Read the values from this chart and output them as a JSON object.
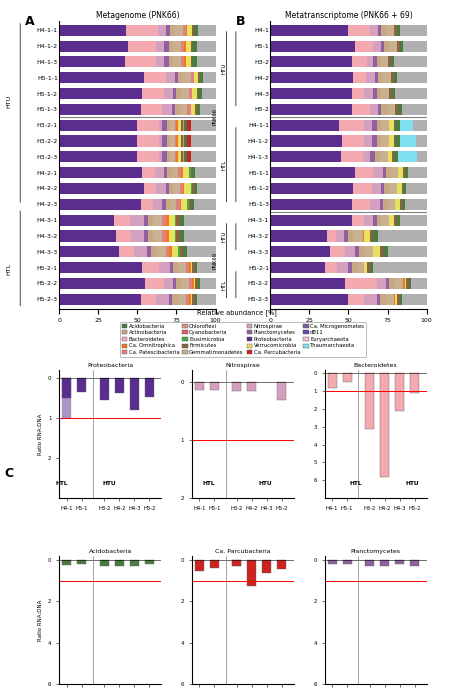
{
  "title_A": "Metagenome (PNK66)",
  "title_B": "Metatranscriptome (PNK66 + 69)",
  "xlabel": "Relative abundance [%]",
  "label_A": "A",
  "label_B": "B",
  "label_C": "C",
  "taxa_colors": {
    "Acidobacteria": "#4a7c3f",
    "Actinobacteria": "#c8a882",
    "Bacteroidetes": "#f4a9b0",
    "Ca. Omnitrophica": "#f07820",
    "Ca. Patescibacteria": "#e08080",
    "Chloroflexi": "#d4967a",
    "Cyanobacteria": "#e06060",
    "Elusimicrobia": "#44aa44",
    "Firmicutes": "#8b6340",
    "Gemmatimonadetes": "#c8b090",
    "Nitrospirae": "#d4a0c0",
    "Planctomycetes": "#9060a0",
    "Proteobacteria": "#5b2d8e",
    "Verrucomicrobia": "#e8e060",
    "Ca. Parcubacteria": "#cc2222",
    "Ca. Microgenometes": "#7b5ea0",
    "dB11": "#6644aa",
    "Euryarchaeota": "#f0c0d0",
    "Thaumarchaeota": "#80e0f0"
  },
  "rows_A": [
    "H5-2-3",
    "H5-2-2",
    "H5-2-1",
    "H4-3-3",
    "H4-3-2",
    "H4-3-1",
    "H4-2-3",
    "H4-2-2",
    "H4-2-1",
    "H3-2-3",
    "H3-2-2",
    "H3-2-1",
    "H5-1-3",
    "H5-1-2",
    "H5-1-1",
    "H4-1-3",
    "H4-1-2",
    "H4-1-1"
  ],
  "group_A": {
    "HTU": [
      "H5-2-3",
      "H5-2-2",
      "H5-2-1",
      "H4-3-3",
      "H4-3-2",
      "H4-3-1",
      "H4-2-3",
      "H4-2-2",
      "H4-2-1",
      "H3-2-3",
      "H3-2-2",
      "H3-2-1"
    ],
    "HTL": [
      "H5-1-3",
      "H5-1-2",
      "H5-1-1",
      "H4-1-3",
      "H4-1-2",
      "H4-1-1"
    ]
  },
  "data_A": {
    "H5-2-3": {
      "Proteobacteria": 52,
      "Bacteroidetes": 10,
      "Nitrospirae": 8,
      "Ca. Omnitrophica": 1,
      "Acidobacteria": 1,
      "Planctomycetes": 2,
      "Firmicutes": 2,
      "Actinobacteria": 4,
      "Ca. Patescibacteria": 2,
      "Gemmatimonadetes": 5,
      "Verrucomicrobia": 1,
      "other": 12
    },
    "H5-2-2": {
      "Proteobacteria": 55,
      "Bacteroidetes": 12,
      "Nitrospirae": 6,
      "Ca. Omnitrophica": 1,
      "Acidobacteria": 1,
      "Planctomycetes": 2,
      "Firmicutes": 2,
      "Actinobacteria": 3,
      "Ca. Patescibacteria": 2,
      "Gemmatimonadetes": 5,
      "Verrucomicrobia": 1,
      "other": 10
    },
    "H5-2-1": {
      "Proteobacteria": 53,
      "Bacteroidetes": 11,
      "Nitrospirae": 7,
      "Ca. Omnitrophica": 1,
      "Acidobacteria": 1,
      "Planctomycetes": 2,
      "Firmicutes": 2,
      "Actinobacteria": 3,
      "Ca. Patescibacteria": 2,
      "Gemmatimonadetes": 5,
      "Verrucomicrobia": 1,
      "other": 12
    },
    "H4-3-3": {
      "Proteobacteria": 38,
      "Bacteroidetes": 10,
      "Nitrospirae": 8,
      "Ca. Omnitrophica": 2,
      "Acidobacteria": 3,
      "Planctomycetes": 3,
      "Firmicutes": 2,
      "Actinobacteria": 3,
      "Ca. Patescibacteria": 2,
      "Gemmatimonadetes": 6,
      "Verrucomicrobia": 4,
      "Elusimicrobia": 1,
      "other": 18
    },
    "H4-3-2": {
      "Proteobacteria": 36,
      "Bacteroidetes": 10,
      "Nitrospirae": 8,
      "Ca. Omnitrophica": 2,
      "Acidobacteria": 3,
      "Planctomycetes": 3,
      "Firmicutes": 2,
      "Actinobacteria": 3,
      "Ca. Patescibacteria": 2,
      "Gemmatimonadetes": 6,
      "Verrucomicrobia": 4,
      "Elusimicrobia": 1,
      "other": 20
    },
    "H4-3-1": {
      "Proteobacteria": 35,
      "Bacteroidetes": 10,
      "Nitrospirae": 9,
      "Ca. Omnitrophica": 2,
      "Acidobacteria": 3,
      "Planctomycetes": 3,
      "Firmicutes": 2,
      "Actinobacteria": 3,
      "Ca. Patescibacteria": 2,
      "Gemmatimonadetes": 6,
      "Verrucomicrobia": 4,
      "Elusimicrobia": 1,
      "other": 20
    },
    "H4-2-3": {
      "Proteobacteria": 52,
      "Bacteroidetes": 8,
      "Nitrospirae": 6,
      "Ca. Omnitrophica": 1,
      "Acidobacteria": 2,
      "Planctomycetes": 2,
      "Firmicutes": 1,
      "Actinobacteria": 3,
      "Ca. Patescibacteria": 2,
      "Gemmatimonadetes": 4,
      "Verrucomicrobia": 4,
      "Elusimicrobia": 1,
      "other": 14
    },
    "H4-2-2": {
      "Proteobacteria": 54,
      "Bacteroidetes": 8,
      "Nitrospirae": 6,
      "Ca. Omnitrophica": 1,
      "Acidobacteria": 2,
      "Planctomycetes": 2,
      "Firmicutes": 1,
      "Actinobacteria": 3,
      "Ca. Patescibacteria": 2,
      "Gemmatimonadetes": 4,
      "Verrucomicrobia": 4,
      "Elusimicrobia": 1,
      "other": 12
    },
    "H4-2-1": {
      "Proteobacteria": 53,
      "Bacteroidetes": 8,
      "Nitrospirae": 6,
      "Ca. Omnitrophica": 1,
      "Acidobacteria": 2,
      "Planctomycetes": 2,
      "Firmicutes": 1,
      "Actinobacteria": 3,
      "Ca. Patescibacteria": 2,
      "Gemmatimonadetes": 4,
      "Verrucomicrobia": 4,
      "Elusimicrobia": 1,
      "other": 13
    },
    "H3-2-3": {
      "Proteobacteria": 50,
      "Bacteroidetes": 14,
      "Nitrospirae": 2,
      "Ca. Omnitrophica": 1,
      "Acidobacteria": 2,
      "Planctomycetes": 3,
      "Firmicutes": 1,
      "Actinobacteria": 2,
      "Ca. Patescibacteria": 1,
      "Gemmatimonadetes": 3,
      "Verrucomicrobia": 2,
      "Chloroflexi": 1,
      "Ca. Parcubacteria": 2,
      "other": 16
    },
    "H3-2-2": {
      "Proteobacteria": 50,
      "Bacteroidetes": 14,
      "Nitrospirae": 2,
      "Ca. Omnitrophica": 1,
      "Acidobacteria": 2,
      "Planctomycetes": 3,
      "Firmicutes": 1,
      "Actinobacteria": 2,
      "Ca. Patescibacteria": 1,
      "Gemmatimonadetes": 3,
      "Verrucomicrobia": 2,
      "Chloroflexi": 1,
      "Ca. Parcubacteria": 2,
      "other": 16
    },
    "H3-2-1": {
      "Proteobacteria": 50,
      "Bacteroidetes": 14,
      "Nitrospirae": 2,
      "Ca. Omnitrophica": 1,
      "Acidobacteria": 2,
      "Planctomycetes": 3,
      "Firmicutes": 1,
      "Actinobacteria": 2,
      "Ca. Patescibacteria": 1,
      "Gemmatimonadetes": 3,
      "Verrucomicrobia": 2,
      "Chloroflexi": 1,
      "Ca. Parcubacteria": 2,
      "other": 16
    },
    "H5-1-3": {
      "Proteobacteria": 52,
      "Bacteroidetes": 14,
      "Nitrospirae": 6,
      "Acidobacteria": 2,
      "Planctomycetes": 2,
      "Firmicutes": 1,
      "Actinobacteria": 3,
      "Ca. Patescibacteria": 2,
      "Gemmatimonadetes": 5,
      "Verrucomicrobia": 3,
      "other": 10
    },
    "H5-1-2": {
      "Proteobacteria": 53,
      "Bacteroidetes": 14,
      "Nitrospirae": 6,
      "Acidobacteria": 2,
      "Planctomycetes": 2,
      "Firmicutes": 1,
      "Actinobacteria": 3,
      "Ca. Patescibacteria": 2,
      "Gemmatimonadetes": 5,
      "Verrucomicrobia": 3,
      "other": 9
    },
    "H5-1-1": {
      "Proteobacteria": 54,
      "Bacteroidetes": 14,
      "Nitrospirae": 6,
      "Acidobacteria": 2,
      "Planctomycetes": 2,
      "Firmicutes": 1,
      "Actinobacteria": 3,
      "Ca. Patescibacteria": 2,
      "Gemmatimonadetes": 5,
      "Verrucomicrobia": 3,
      "other": 8
    },
    "H4-1-3": {
      "Proteobacteria": 42,
      "Bacteroidetes": 20,
      "Nitrospirae": 5,
      "Acidobacteria": 3,
      "Planctomycetes": 3,
      "Firmicutes": 1,
      "Actinobacteria": 3,
      "Ca. Patescibacteria": 2,
      "Gemmatimonadetes": 5,
      "Verrucomicrobia": 3,
      "Ca. Omnitrophica": 1,
      "other": 12
    },
    "H4-1-2": {
      "Proteobacteria": 44,
      "Bacteroidetes": 18,
      "Nitrospirae": 5,
      "Acidobacteria": 3,
      "Planctomycetes": 3,
      "Firmicutes": 1,
      "Actinobacteria": 3,
      "Ca. Patescibacteria": 2,
      "Gemmatimonadetes": 5,
      "Verrucomicrobia": 3,
      "Ca. Omnitrophica": 1,
      "other": 12
    },
    "H4-1-1": {
      "Proteobacteria": 43,
      "Bacteroidetes": 20,
      "Nitrospirae": 5,
      "Acidobacteria": 3,
      "Planctomycetes": 3,
      "Firmicutes": 1,
      "Actinobacteria": 3,
      "Ca. Patescibacteria": 2,
      "Gemmatimonadetes": 5,
      "Verrucomicrobia": 3,
      "Ca. Omnitrophica": 1,
      "other": 11
    }
  },
  "rows_B_PNK66": [
    "H5-2-3",
    "H5-2-2",
    "H5-2-1",
    "H4-3-3",
    "H4-3-2",
    "H4-3-1",
    "H5-1-3",
    "H5-1-2",
    "H5-1-1",
    "H4-1-3",
    "H4-1-2",
    "H4-1-1"
  ],
  "rows_B_PNK69": [
    "H5-2",
    "H4-3",
    "H4-2",
    "H3-2",
    "H5-1",
    "H4-1"
  ],
  "data_B_PNK66": {
    "H5-2-3": {
      "Proteobacteria": 50,
      "Bacteroidetes": 10,
      "Nitrospirae": 8,
      "Ca. Omnitrophica": 1,
      "Acidobacteria": 1,
      "Planctomycetes": 2,
      "Firmicutes": 2,
      "Actinobacteria": 4,
      "Gemmatimonadetes": 5,
      "Verrucomicrobia": 1,
      "other": 16
    },
    "H5-2-2": {
      "Proteobacteria": 48,
      "Bacteroidetes": 20,
      "Nitrospirae": 6,
      "Ca. Omnitrophica": 1,
      "Acidobacteria": 1,
      "Planctomycetes": 2,
      "Firmicutes": 2,
      "Actinobacteria": 4,
      "Gemmatimonadetes": 5,
      "Verrucomicrobia": 1,
      "other": 10
    },
    "H5-2-1": {
      "Proteobacteria": 35,
      "Bacteroidetes": 8,
      "Nitrospirae": 7,
      "Acidobacteria": 2,
      "Planctomycetes": 2,
      "Firmicutes": 2,
      "Actinobacteria": 4,
      "Gemmatimonadetes": 4,
      "Verrucomicrobia": 2,
      "other": 34
    },
    "H4-3-3": {
      "Proteobacteria": 38,
      "Bacteroidetes": 10,
      "Nitrospirae": 6,
      "Acidobacteria": 3,
      "Planctomycetes": 3,
      "Firmicutes": 2,
      "Actinobacteria": 3,
      "Gemmatimonadetes": 6,
      "Verrucomicrobia": 4,
      "other": 25
    },
    "H4-3-2": {
      "Proteobacteria": 36,
      "Bacteroidetes": 6,
      "Nitrospirae": 5,
      "Acidobacteria": 3,
      "Planctomycetes": 3,
      "Firmicutes": 2,
      "Actinobacteria": 3,
      "Gemmatimonadetes": 6,
      "Verrucomicrobia": 4,
      "Ca. Omnitrophica": 1,
      "other": 31
    },
    "H4-3-1": {
      "Proteobacteria": 52,
      "Bacteroidetes": 8,
      "Nitrospirae": 6,
      "Acidobacteria": 2,
      "Planctomycetes": 2,
      "Firmicutes": 2,
      "Actinobacteria": 3,
      "Gemmatimonadetes": 5,
      "Verrucomicrobia": 3,
      "other": 17
    },
    "H5-1-3": {
      "Proteobacteria": 52,
      "Bacteroidetes": 12,
      "Nitrospirae": 6,
      "Acidobacteria": 2,
      "Planctomycetes": 2,
      "Firmicutes": 1,
      "Actinobacteria": 3,
      "Gemmatimonadetes": 5,
      "Verrucomicrobia": 3,
      "other": 14
    },
    "H5-1-2": {
      "Proteobacteria": 53,
      "Bacteroidetes": 12,
      "Nitrospirae": 6,
      "Acidobacteria": 2,
      "Planctomycetes": 2,
      "Firmicutes": 1,
      "Actinobacteria": 3,
      "Gemmatimonadetes": 5,
      "Verrucomicrobia": 3,
      "other": 13
    },
    "H5-1-1": {
      "Proteobacteria": 54,
      "Bacteroidetes": 12,
      "Nitrospirae": 6,
      "Acidobacteria": 2,
      "Planctomycetes": 2,
      "Firmicutes": 1,
      "Actinobacteria": 3,
      "Gemmatimonadetes": 5,
      "Verrucomicrobia": 3,
      "other": 12
    },
    "H4-1-3": {
      "Thaumarchaeota": 12,
      "Proteobacteria": 45,
      "Bacteroidetes": 14,
      "Nitrospirae": 5,
      "Acidobacteria": 3,
      "Planctomycetes": 3,
      "Firmicutes": 1,
      "Actinobacteria": 3,
      "Gemmatimonadetes": 5,
      "Verrucomicrobia": 3,
      "other": 6
    },
    "H4-1-2": {
      "Thaumarchaeota": 10,
      "Proteobacteria": 46,
      "Bacteroidetes": 14,
      "Nitrospirae": 5,
      "Acidobacteria": 3,
      "Planctomycetes": 3,
      "Firmicutes": 1,
      "Actinobacteria": 3,
      "Gemmatimonadetes": 5,
      "Verrucomicrobia": 3,
      "other": 7
    },
    "H4-1-1": {
      "Thaumarchaeota": 8,
      "Proteobacteria": 44,
      "Bacteroidetes": 16,
      "Nitrospirae": 5,
      "Acidobacteria": 3,
      "Planctomycetes": 3,
      "Firmicutes": 1,
      "Actinobacteria": 3,
      "Gemmatimonadetes": 5,
      "Verrucomicrobia": 3,
      "other": 9
    }
  },
  "data_B_PNK69": {
    "H5-2": {
      "Proteobacteria": 52,
      "Bacteroidetes": 12,
      "Nitrospirae": 5,
      "Acidobacteria": 2,
      "Planctomycetes": 2,
      "Firmicutes": 2,
      "Actinobacteria": 4,
      "Gemmatimonadetes": 5,
      "other": 16
    },
    "H4-3": {
      "Proteobacteria": 52,
      "Bacteroidetes": 8,
      "Nitrospirae": 6,
      "Acidobacteria": 2,
      "Planctomycetes": 2,
      "Firmicutes": 2,
      "Actinobacteria": 3,
      "Gemmatimonadetes": 5,
      "other": 20
    },
    "H4-2": {
      "Proteobacteria": 53,
      "Bacteroidetes": 8,
      "Nitrospirae": 6,
      "Acidobacteria": 2,
      "Planctomycetes": 2,
      "Firmicutes": 2,
      "Actinobacteria": 3,
      "Gemmatimonadetes": 5,
      "other": 19
    },
    "H3-2": {
      "Proteobacteria": 52,
      "Bacteroidetes": 10,
      "Nitrospirae": 4,
      "Acidobacteria": 2,
      "Planctomycetes": 2,
      "Firmicutes": 2,
      "Actinobacteria": 3,
      "Gemmatimonadetes": 4,
      "other": 21
    },
    "H5-1": {
      "Proteobacteria": 54,
      "Bacteroidetes": 12,
      "Nitrospirae": 5,
      "Acidobacteria": 2,
      "Planctomycetes": 2,
      "Firmicutes": 2,
      "Actinobacteria": 3,
      "Gemmatimonadetes": 5,
      "other": 15
    },
    "H4-1": {
      "Proteobacteria": 50,
      "Bacteroidetes": 14,
      "Nitrospirae": 5,
      "Acidobacteria": 2,
      "Planctomycetes": 2,
      "Firmicutes": 2,
      "Actinobacteria": 3,
      "Gemmatimonadetes": 5,
      "other": 17
    }
  },
  "legend_items": [
    [
      "Acidobacteria",
      "#4a7c3f"
    ],
    [
      "Actinobacteria",
      "#c8a882"
    ],
    [
      "Bacteroidetes",
      "#f4a9b0"
    ],
    [
      "Ca. Omnitrophica",
      "#f07820"
    ],
    [
      "Ca. Patescibacteria",
      "#e08080"
    ],
    [
      "Chloroflexi",
      "#d4967a"
    ],
    [
      "Cyanobacteria",
      "#e06060"
    ],
    [
      "Elusimicrobia",
      "#44aa44"
    ],
    [
      "Firmicutes",
      "#8b6340"
    ],
    [
      "Gemmatimonadetes",
      "#c8b090"
    ],
    [
      "Nitrospirae",
      "#d4a0c0"
    ],
    [
      "Planctomycetes",
      "#9060a0"
    ],
    [
      "Proteobacteria",
      "#5b2d8e"
    ],
    [
      "Verrucomicrobia",
      "#e8e060"
    ],
    [
      "Ca. Parcubacteria",
      "#cc2222"
    ],
    [
      "Ca. Microgenometes",
      "#7b5ea0"
    ],
    [
      "dB11",
      "#6644aa"
    ],
    [
      "Euryarchaeota",
      "#f0c0d0"
    ],
    [
      "Thaumarchaeota",
      "#80e0f0"
    ]
  ],
  "panel_C_groups": [
    "H4-1",
    "H5-1",
    "H3-2",
    "H4-2",
    "H4-3",
    "H5-2"
  ],
  "panel_C_labels": [
    "HTL",
    "HTU"
  ],
  "panel_C_htl": [
    "H4-1",
    "H5-1"
  ],
  "panel_C_htu": [
    "H3-2",
    "H4-2",
    "H4-3",
    "H5-2"
  ],
  "panel_C_data": {
    "Proteobacteria": {
      "H4-1": -0.5,
      "H5-1": -0.3,
      "H3-2": -0.6,
      "H4-2": -0.4,
      "H4-3": -1.0,
      "H5-2": -0.5,
      "H4-1_extra": -1.0,
      "H5-2_extra": -0.3
    },
    "Nitrospirae": {
      "H4-1": -0.2,
      "H5-1": -0.2,
      "H3-2": -0.2,
      "H4-2": -0.2,
      "H4-3": 0,
      "H5-2": -0.5
    },
    "Bacteroidetes": {
      "H4-1": -1.0,
      "H5-1": -0.5,
      "H3-2": -3.2,
      "H4-2": -6.5,
      "H4-3": -2.5,
      "H5-2": -1.5
    },
    "Acidobacteria": {
      "H4-1": -0.3,
      "H5-1": -0.2,
      "H3-2": -0.3,
      "H4-2": -0.3,
      "H4-3": -0.3,
      "H5-2": -0.2
    },
    "Ca. Parcubacteria": {
      "H4-1": -0.8,
      "H5-1": -0.5,
      "H3-2": -0.3,
      "H4-2": -1.5,
      "H4-3": -0.8,
      "H5-2": -0.5
    },
    "Planctomycetes": {
      "H4-1": -0.2,
      "H5-1": -0.2,
      "H3-2": -0.3,
      "H4-2": -0.3,
      "H4-3": -0.2,
      "H5-2": -0.3
    }
  }
}
